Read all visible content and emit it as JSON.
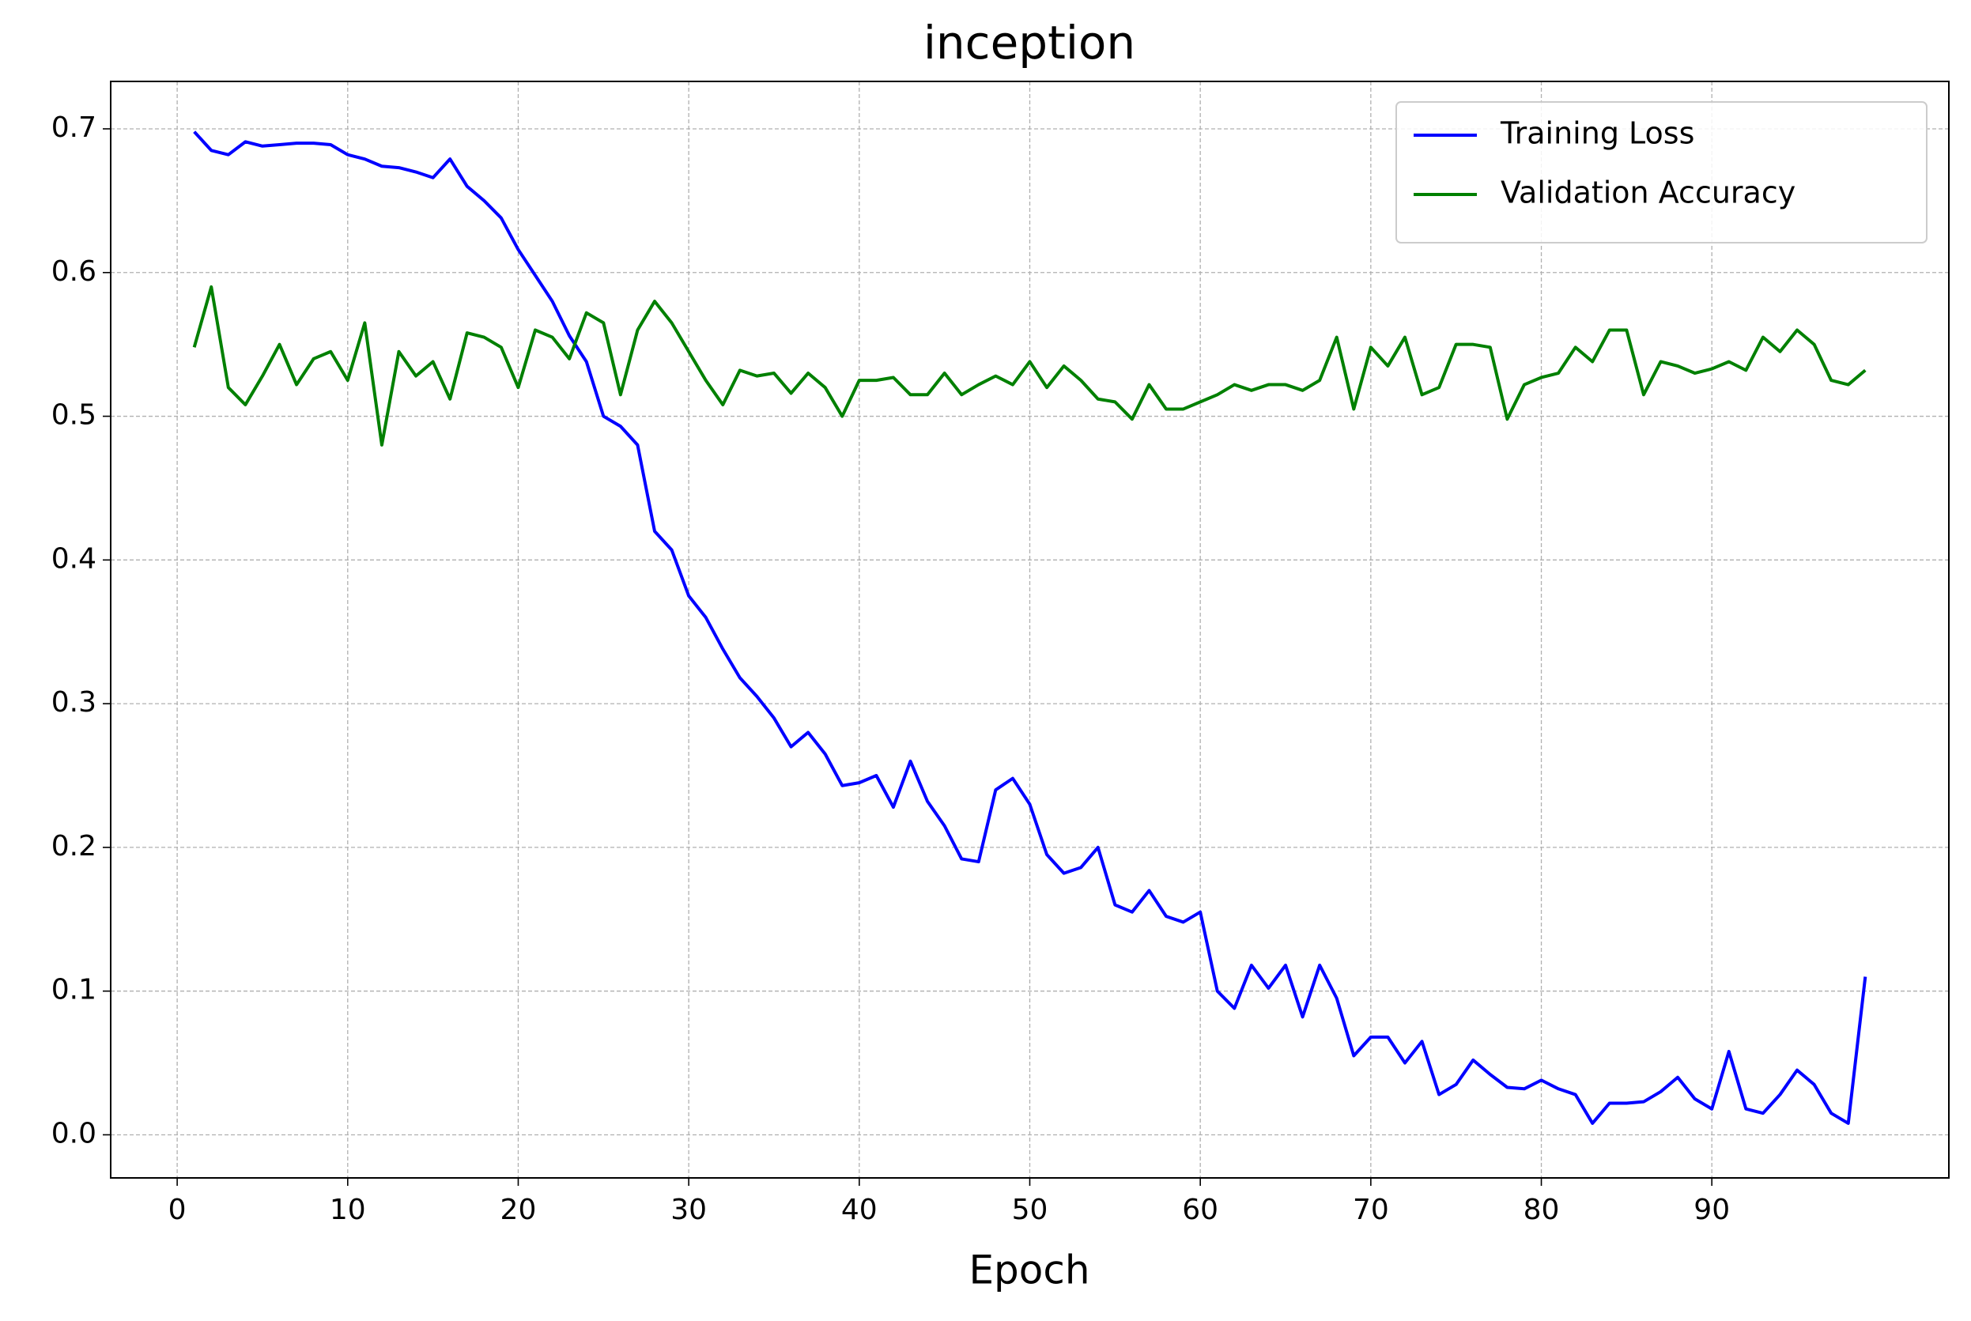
{
  "chart_data": {
    "type": "line",
    "title": "inception",
    "x_label": "Epoch",
    "x": [
      1,
      2,
      3,
      4,
      5,
      6,
      7,
      8,
      9,
      10,
      11,
      12,
      13,
      14,
      15,
      16,
      17,
      18,
      19,
      20,
      21,
      22,
      23,
      24,
      25,
      26,
      27,
      28,
      29,
      30,
      31,
      32,
      33,
      34,
      35,
      36,
      37,
      38,
      39,
      40,
      41,
      42,
      43,
      44,
      45,
      46,
      47,
      48,
      49,
      50,
      51,
      52,
      53,
      54,
      55,
      56,
      57,
      58,
      59,
      60,
      61,
      62,
      63,
      64,
      65,
      66,
      67,
      68,
      69,
      70,
      71,
      72,
      73,
      74,
      75,
      76,
      77,
      78,
      79,
      80,
      81,
      82,
      83,
      84,
      85,
      86,
      87,
      88,
      89,
      90,
      91,
      92,
      93,
      94,
      95,
      96,
      97,
      98,
      99
    ],
    "series": [
      {
        "name": "Training Loss",
        "color": "#0000ff",
        "values": [
          0.698,
          0.685,
          0.682,
          0.691,
          0.688,
          0.689,
          0.69,
          0.69,
          0.689,
          0.682,
          0.679,
          0.674,
          0.673,
          0.67,
          0.666,
          0.679,
          0.66,
          0.65,
          0.638,
          0.616,
          0.598,
          0.58,
          0.556,
          0.538,
          0.5,
          0.493,
          0.48,
          0.42,
          0.407,
          0.375,
          0.36,
          0.338,
          0.318,
          0.305,
          0.29,
          0.27,
          0.28,
          0.265,
          0.243,
          0.245,
          0.25,
          0.228,
          0.26,
          0.232,
          0.215,
          0.192,
          0.19,
          0.24,
          0.248,
          0.23,
          0.195,
          0.182,
          0.186,
          0.2,
          0.16,
          0.155,
          0.17,
          0.152,
          0.148,
          0.155,
          0.1,
          0.088,
          0.118,
          0.102,
          0.118,
          0.082,
          0.118,
          0.095,
          0.055,
          0.068,
          0.068,
          0.05,
          0.065,
          0.028,
          0.035,
          0.052,
          0.042,
          0.033,
          0.032,
          0.038,
          0.032,
          0.028,
          0.008,
          0.022,
          0.022,
          0.023,
          0.03,
          0.04,
          0.025,
          0.018,
          0.058,
          0.018,
          0.015,
          0.028,
          0.045,
          0.035,
          0.015,
          0.008,
          0.11
        ]
      },
      {
        "name": "Validation Accuracy",
        "color": "#008000",
        "values": [
          0.548,
          0.59,
          0.52,
          0.508,
          0.528,
          0.55,
          0.522,
          0.54,
          0.545,
          0.525,
          0.565,
          0.48,
          0.545,
          0.528,
          0.538,
          0.512,
          0.558,
          0.555,
          0.548,
          0.52,
          0.56,
          0.555,
          0.54,
          0.572,
          0.565,
          0.515,
          0.56,
          0.58,
          0.565,
          0.545,
          0.525,
          0.508,
          0.532,
          0.528,
          0.53,
          0.516,
          0.53,
          0.52,
          0.5,
          0.525,
          0.525,
          0.527,
          0.515,
          0.515,
          0.53,
          0.515,
          0.522,
          0.528,
          0.522,
          0.538,
          0.52,
          0.535,
          0.525,
          0.512,
          0.51,
          0.498,
          0.522,
          0.505,
          0.505,
          0.51,
          0.515,
          0.522,
          0.518,
          0.522,
          0.522,
          0.518,
          0.525,
          0.555,
          0.505,
          0.548,
          0.535,
          0.555,
          0.515,
          0.52,
          0.55,
          0.55,
          0.548,
          0.498,
          0.522,
          0.527,
          0.53,
          0.548,
          0.538,
          0.56,
          0.56,
          0.515,
          0.538,
          0.535,
          0.53,
          0.533,
          0.538,
          0.532,
          0.555,
          0.545,
          0.56,
          0.55,
          0.525,
          0.522,
          0.532
        ]
      }
    ],
    "xlim": [
      -3.9,
      103.9
    ],
    "xticks": [
      0,
      10,
      20,
      30,
      40,
      50,
      60,
      70,
      80,
      90
    ],
    "ylim": [
      -0.03,
      0.733
    ],
    "yticks": [
      {
        "value": 0,
        "label": "0.0"
      },
      0.1,
      0.2,
      0.3,
      0.4,
      0.5,
      0.6,
      0.7
    ],
    "grid": true,
    "legend": "upper right"
  }
}
